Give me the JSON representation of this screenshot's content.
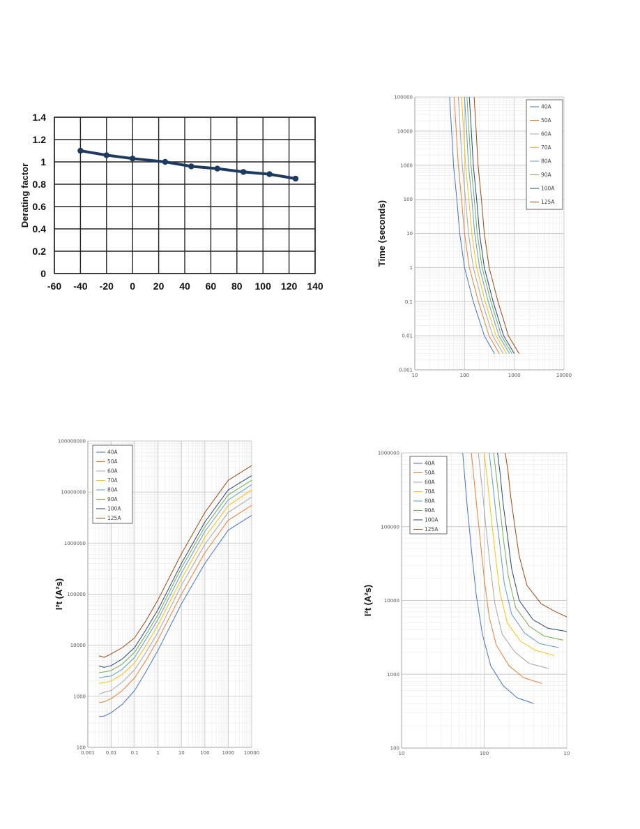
{
  "chart_data": [
    {
      "type": "line",
      "ylabel": "Derating factor",
      "xlabel": "",
      "xlim": [
        -60,
        140
      ],
      "ylim": [
        0,
        1.4
      ],
      "x_ticks": [
        "-60",
        "-40",
        "-20",
        "0",
        "20",
        "40",
        "60",
        "80",
        "100",
        "120",
        "140"
      ],
      "y_ticks": [
        "0",
        "0.2",
        "0.4",
        "0.6",
        "0.8",
        "1",
        "1.2",
        "1.4"
      ],
      "grid": true,
      "series": [
        {
          "x": [
            -40,
            -20,
            0,
            25,
            45,
            65,
            85,
            105,
            125
          ],
          "values": [
            1.1,
            1.06,
            1.03,
            1.0,
            0.96,
            0.94,
            0.91,
            0.89,
            0.85
          ]
        }
      ]
    },
    {
      "type": "line",
      "ylabel": "Time (seconds)",
      "xlabel": "",
      "x_scale": "log",
      "y_scale": "log",
      "xlim": [
        10,
        10000
      ],
      "ylim": [
        0.001,
        100000
      ],
      "x_ticks": [
        "10",
        "100",
        "1000",
        "10000"
      ],
      "y_ticks": [
        "0.001",
        "0.01",
        "0.1",
        "1",
        "10",
        "100",
        "1000",
        "10000",
        "100000"
      ],
      "legend": "top-right",
      "series": [
        {
          "name": "40A",
          "color": "#4472c4",
          "x": [
            50,
            55,
            60,
            70,
            80,
            100,
            150,
            250,
            400
          ],
          "values": [
            100000,
            10000,
            1000,
            100,
            10,
            1,
            0.1,
            0.01,
            0.003
          ]
        },
        {
          "name": "50A",
          "color": "#ed7d31",
          "x": [
            62,
            68,
            75,
            87,
            100,
            125,
            190,
            310,
            500
          ],
          "values": [
            100000,
            10000,
            1000,
            100,
            10,
            1,
            0.1,
            0.01,
            0.003
          ]
        },
        {
          "name": "60A",
          "color": "#a5a5a5",
          "x": [
            75,
            82,
            90,
            105,
            120,
            150,
            225,
            370,
            600
          ],
          "values": [
            100000,
            10000,
            1000,
            100,
            10,
            1,
            0.1,
            0.01,
            0.003
          ]
        },
        {
          "name": "70A",
          "color": "#ffc000",
          "x": [
            87,
            96,
            105,
            122,
            140,
            175,
            260,
            430,
            700
          ],
          "values": [
            100000,
            10000,
            1000,
            100,
            10,
            1,
            0.1,
            0.01,
            0.003
          ]
        },
        {
          "name": "80A",
          "color": "#5b9bd5",
          "x": [
            100,
            110,
            120,
            140,
            160,
            200,
            300,
            490,
            800
          ],
          "values": [
            100000,
            10000,
            1000,
            100,
            10,
            1,
            0.1,
            0.01,
            0.003
          ]
        },
        {
          "name": "90A",
          "color": "#70ad47",
          "x": [
            112,
            123,
            135,
            157,
            180,
            225,
            340,
            550,
            900
          ],
          "values": [
            100000,
            10000,
            1000,
            100,
            10,
            1,
            0.1,
            0.01,
            0.003
          ]
        },
        {
          "name": "100A",
          "color": "#264478",
          "x": [
            125,
            137,
            150,
            175,
            200,
            250,
            375,
            610,
            1000
          ],
          "values": [
            100000,
            10000,
            1000,
            100,
            10,
            1,
            0.1,
            0.01,
            0.003
          ]
        },
        {
          "name": "125A",
          "color": "#9e480e",
          "x": [
            156,
            171,
            187,
            218,
            250,
            312,
            470,
            760,
            1250
          ],
          "values": [
            100000,
            10000,
            1000,
            100,
            10,
            1,
            0.1,
            0.01,
            0.003
          ]
        }
      ]
    },
    {
      "type": "line",
      "ylabel": "I²t (A²s)",
      "xlabel": "",
      "x_scale": "log",
      "y_scale": "log",
      "xlim": [
        0.001,
        10000
      ],
      "ylim": [
        100,
        100000000
      ],
      "x_ticks": [
        "0.001",
        "0.01",
        "0.1",
        "1",
        "10",
        "100",
        "1000",
        "10000"
      ],
      "y_ticks": [
        "100",
        "1000",
        "10000",
        "100000",
        "1000000",
        "10000000",
        "100000000"
      ],
      "legend": "top-left",
      "series": [
        {
          "name": "40A",
          "color": "#4472c4",
          "x": [
            0.003,
            0.005,
            0.01,
            0.03,
            0.1,
            0.3,
            1,
            10,
            100,
            1000,
            10000
          ],
          "values": [
            400,
            410,
            480,
            700,
            1300,
            3000,
            8000,
            65000,
            400000,
            1800000,
            3500000
          ]
        },
        {
          "name": "50A",
          "color": "#ed7d31",
          "x": [
            0.003,
            0.005,
            0.01,
            0.03,
            0.1,
            0.3,
            1,
            10,
            100,
            1000,
            10000
          ],
          "values": [
            750,
            780,
            900,
            1300,
            2300,
            5000,
            13000,
            100000,
            650000,
            2800000,
            5500000
          ]
        },
        {
          "name": "60A",
          "color": "#a5a5a5",
          "x": [
            0.003,
            0.005,
            0.01,
            0.03,
            0.1,
            0.3,
            1,
            10,
            100,
            1000,
            10000
          ],
          "values": [
            1100,
            1200,
            1300,
            1900,
            3300,
            7200,
            18000,
            150000,
            950000,
            4000000,
            8000000
          ]
        },
        {
          "name": "70A",
          "color": "#ffc000",
          "x": [
            0.003,
            0.005,
            0.01,
            0.03,
            0.1,
            0.3,
            1,
            10,
            100,
            1000,
            10000
          ],
          "values": [
            1800,
            1850,
            2000,
            2700,
            4500,
            9800,
            25000,
            200000,
            1300000,
            5400000,
            11000000
          ]
        },
        {
          "name": "80A",
          "color": "#5b9bd5",
          "x": [
            0.003,
            0.005,
            0.01,
            0.03,
            0.1,
            0.3,
            1,
            10,
            100,
            1000,
            10000
          ],
          "values": [
            2300,
            2400,
            2500,
            3400,
            5800,
            13000,
            32000,
            260000,
            1700000,
            7000000,
            14000000
          ]
        },
        {
          "name": "90A",
          "color": "#70ad47",
          "x": [
            0.003,
            0.005,
            0.01,
            0.03,
            0.1,
            0.3,
            1,
            10,
            100,
            1000,
            10000
          ],
          "values": [
            2900,
            3000,
            3200,
            4300,
            7300,
            16000,
            40000,
            330000,
            2100000,
            8800000,
            17000000
          ]
        },
        {
          "name": "100A",
          "color": "#264478",
          "x": [
            0.003,
            0.005,
            0.01,
            0.03,
            0.1,
            0.3,
            1,
            10,
            100,
            1000,
            10000
          ],
          "values": [
            3900,
            3700,
            4000,
            5400,
            9000,
            20000,
            50000,
            400000,
            2600000,
            11000000,
            21000000
          ]
        },
        {
          "name": "125A",
          "color": "#9e480e",
          "x": [
            0.003,
            0.005,
            0.01,
            0.03,
            0.1,
            0.3,
            1,
            10,
            100,
            1000,
            10000
          ],
          "values": [
            6200,
            5800,
            6800,
            9000,
            14000,
            30000,
            78000,
            620000,
            4000000,
            17000000,
            33000000
          ]
        }
      ]
    },
    {
      "type": "line",
      "ylabel": "I²t (A²s)",
      "xlabel": "",
      "x_scale": "log",
      "y_scale": "log",
      "xlim": [
        10,
        1000
      ],
      "ylim": [
        100,
        1000000
      ],
      "x_ticks": [
        "10",
        "100",
        "10"
      ],
      "y_ticks": [
        "100",
        "1000",
        "10000",
        "100000",
        "1000000"
      ],
      "legend": "top-left",
      "series": [
        {
          "name": "40A",
          "color": "#4472c4",
          "x": [
            55,
            62,
            70,
            80,
            95,
            120,
            170,
            250,
            400
          ],
          "values": [
            1000000,
            200000,
            50000,
            12000,
            3500,
            1300,
            700,
            480,
            400
          ]
        },
        {
          "name": "50A",
          "color": "#ed7d31",
          "x": [
            70,
            78,
            88,
            100,
            115,
            140,
            200,
            300,
            500
          ],
          "values": [
            1000000,
            300000,
            80000,
            20000,
            6000,
            2500,
            1300,
            900,
            750
          ]
        },
        {
          "name": "60A",
          "color": "#a5a5a5",
          "x": [
            85,
            94,
            105,
            118,
            135,
            165,
            235,
            350,
            600
          ],
          "values": [
            1000000,
            350000,
            100000,
            30000,
            9000,
            3500,
            2000,
            1400,
            1200
          ]
        },
        {
          "name": "70A",
          "color": "#ffc000",
          "x": [
            100,
            110,
            122,
            137,
            155,
            190,
            275,
            420,
            700
          ],
          "values": [
            1000000,
            400000,
            130000,
            40000,
            13000,
            5000,
            2800,
            2100,
            1800
          ]
        },
        {
          "name": "80A",
          "color": "#5b9bd5",
          "x": [
            115,
            125,
            138,
            155,
            175,
            215,
            310,
            470,
            800
          ],
          "values": [
            1000000,
            450000,
            160000,
            55000,
            17000,
            6500,
            3600,
            2600,
            2300
          ]
        },
        {
          "name": "90A",
          "color": "#70ad47",
          "x": [
            130,
            140,
            155,
            172,
            195,
            240,
            350,
            530,
            900
          ],
          "values": [
            1000000,
            500000,
            180000,
            65000,
            22000,
            8000,
            4500,
            3300,
            2900
          ]
        },
        {
          "name": "100A",
          "color": "#264478",
          "x": [
            145,
            155,
            170,
            190,
            215,
            265,
            390,
            590,
            1000
          ],
          "values": [
            1000000,
            550000,
            200000,
            80000,
            27000,
            10000,
            5500,
            4200,
            3800
          ]
        },
        {
          "name": "125A",
          "color": "#9e480e",
          "x": [
            180,
            193,
            210,
            235,
            265,
            330,
            490,
            740,
            1000
          ],
          "values": [
            1000000,
            600000,
            250000,
            100000,
            40000,
            16000,
            9000,
            7000,
            6000
          ]
        }
      ]
    }
  ]
}
